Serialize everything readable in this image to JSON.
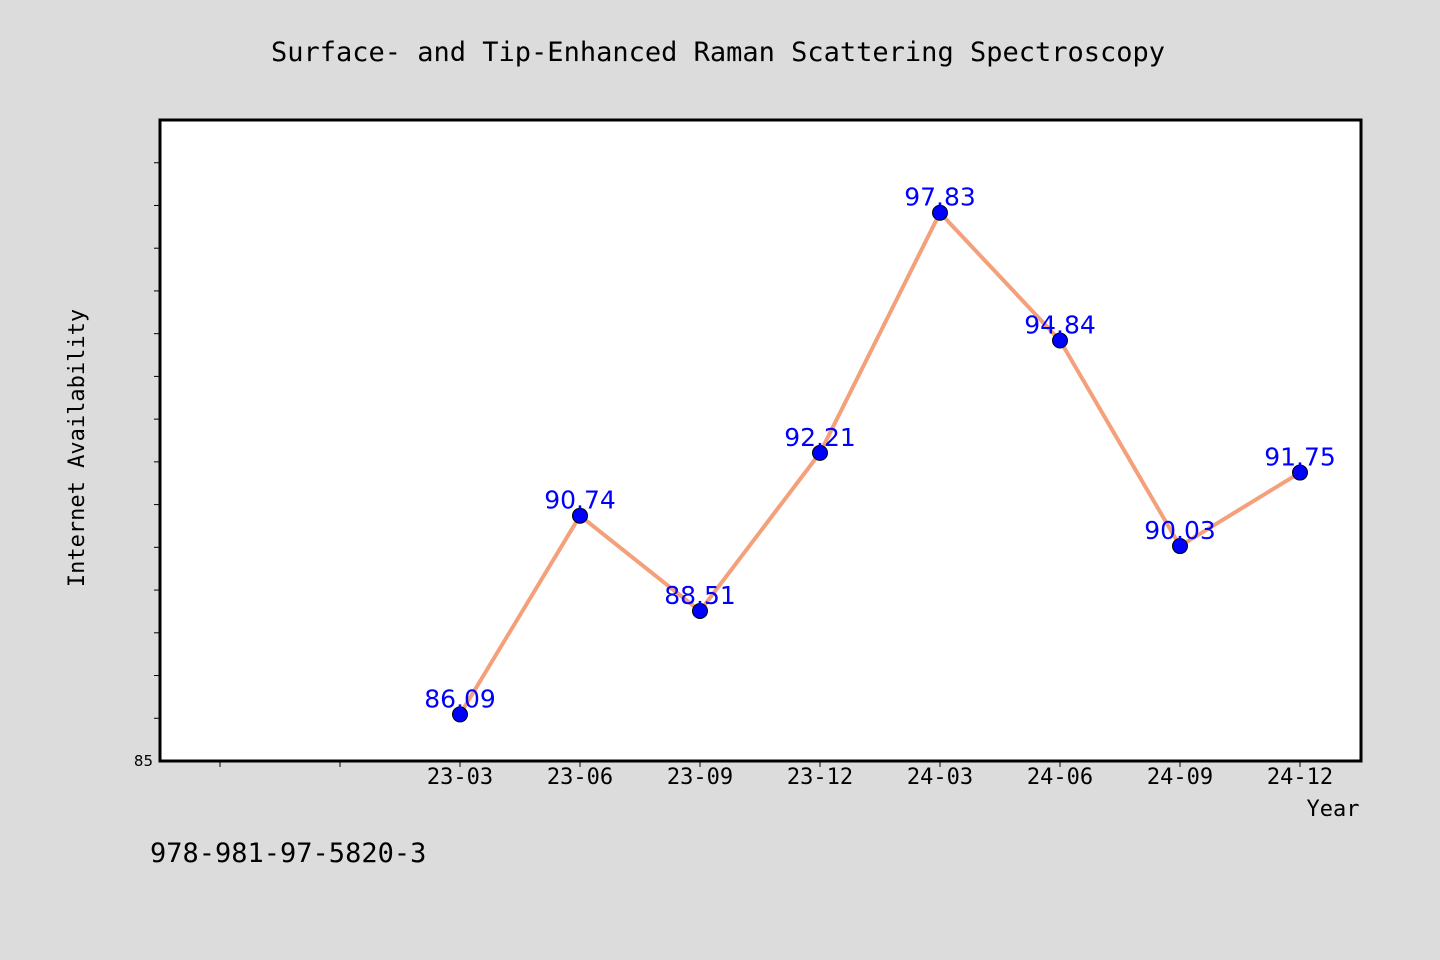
{
  "chart_data": {
    "type": "line",
    "title": "Surface- and Tip-Enhanced Raman Scattering Spectroscopy",
    "xlabel": "Year",
    "ylabel": "Internet Availability",
    "categories": [
      "23-03",
      "23-06",
      "23-09",
      "23-12",
      "24-03",
      "24-06",
      "24-09",
      "24-12"
    ],
    "series": [
      {
        "values": [
          86.09,
          90.74,
          88.51,
          92.21,
          97.83,
          94.84,
          90.03,
          91.75
        ]
      }
    ],
    "ylim": [
      85,
      100
    ],
    "ytick_labels": [
      "85"
    ],
    "grid": false,
    "legend": "none",
    "colors": {
      "line": "#f4a07a",
      "marker": "#0000ff",
      "label": "#0000ff",
      "background": "#dcdcdc",
      "plot_background": "#ffffff"
    }
  },
  "footer": {
    "isbn": "978-981-97-5820-3"
  }
}
